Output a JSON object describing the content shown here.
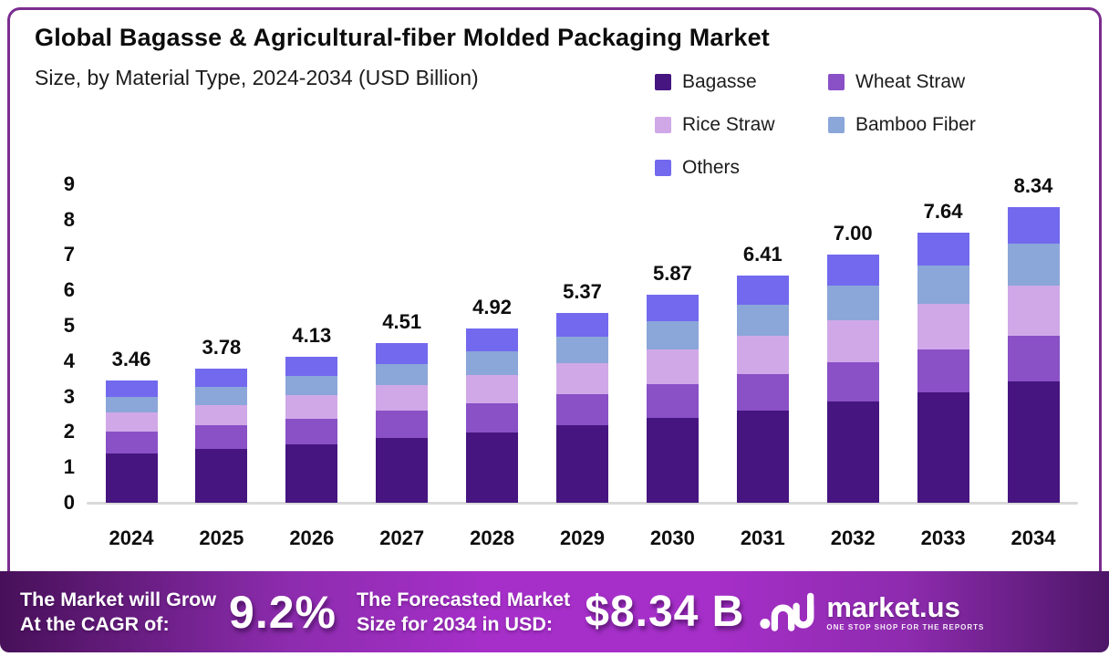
{
  "header": {
    "title": "Global Bagasse & Agricultural-fiber Molded Packaging Market",
    "subtitle": "Size, by Material Type, 2024-2034 (USD Billion)"
  },
  "chart_data": {
    "type": "bar",
    "stacked": true,
    "title": "Global Bagasse & Agricultural-fiber Molded Packaging Market",
    "subtitle": "Size, by Material Type, 2024-2034 (USD Billion)",
    "xlabel": "",
    "ylabel": "USD Billion",
    "ylim": [
      0,
      9
    ],
    "y_ticks": [
      "0",
      "1",
      "2",
      "3",
      "4",
      "5",
      "6",
      "7",
      "8",
      "9"
    ],
    "grid": false,
    "legend_position": "top-right",
    "categories": [
      "2024",
      "2025",
      "2026",
      "2027",
      "2028",
      "2029",
      "2030",
      "2031",
      "2032",
      "2033",
      "2034"
    ],
    "series": [
      {
        "name": "Bagasse",
        "color": "#461580",
        "values": [
          1.38,
          1.51,
          1.66,
          1.83,
          1.99,
          2.18,
          2.4,
          2.61,
          2.86,
          3.13,
          3.43
        ]
      },
      {
        "name": "Wheat Straw",
        "color": "#8a50c6",
        "values": [
          0.62,
          0.67,
          0.72,
          0.77,
          0.83,
          0.89,
          0.96,
          1.03,
          1.12,
          1.2,
          1.29
        ]
      },
      {
        "name": "Rice Straw",
        "color": "#d0a8e8",
        "values": [
          0.54,
          0.59,
          0.66,
          0.72,
          0.8,
          0.88,
          0.97,
          1.07,
          1.17,
          1.29,
          1.42
        ]
      },
      {
        "name": "Bamboo Fiber",
        "color": "#8ba6d9",
        "values": [
          0.45,
          0.5,
          0.55,
          0.6,
          0.66,
          0.73,
          0.8,
          0.89,
          0.98,
          1.08,
          1.19
        ]
      },
      {
        "name": "Others",
        "color": "#7269ee",
        "values": [
          0.47,
          0.51,
          0.54,
          0.59,
          0.64,
          0.69,
          0.74,
          0.81,
          0.87,
          0.94,
          1.01
        ]
      }
    ],
    "totals": [
      3.46,
      3.78,
      4.13,
      4.51,
      4.92,
      5.37,
      5.87,
      6.41,
      7.0,
      7.64,
      8.34
    ],
    "total_labels": [
      "3.46",
      "3.78",
      "4.13",
      "4.51",
      "4.92",
      "5.37",
      "5.87",
      "6.41",
      "7.00",
      "7.64",
      "8.34"
    ]
  },
  "footer": {
    "cagr_label_line1": "The Market will Grow",
    "cagr_label_line2": "At the CAGR of:",
    "cagr_value": "9.2%",
    "forecast_label_line1": "The Forecasted Market",
    "forecast_label_line2": "Size for 2034 in USD:",
    "forecast_value": "$8.34 B",
    "brand": {
      "name": "market.us",
      "tagline": "ONE STOP SHOP FOR THE REPORTS",
      "icon": "market-us-wave-icon"
    },
    "accent_colors": {
      "gradient_dark": "#471059",
      "gradient_bright": "#a62fc9"
    }
  },
  "frame": {
    "border_color": "#7b2d8f"
  }
}
